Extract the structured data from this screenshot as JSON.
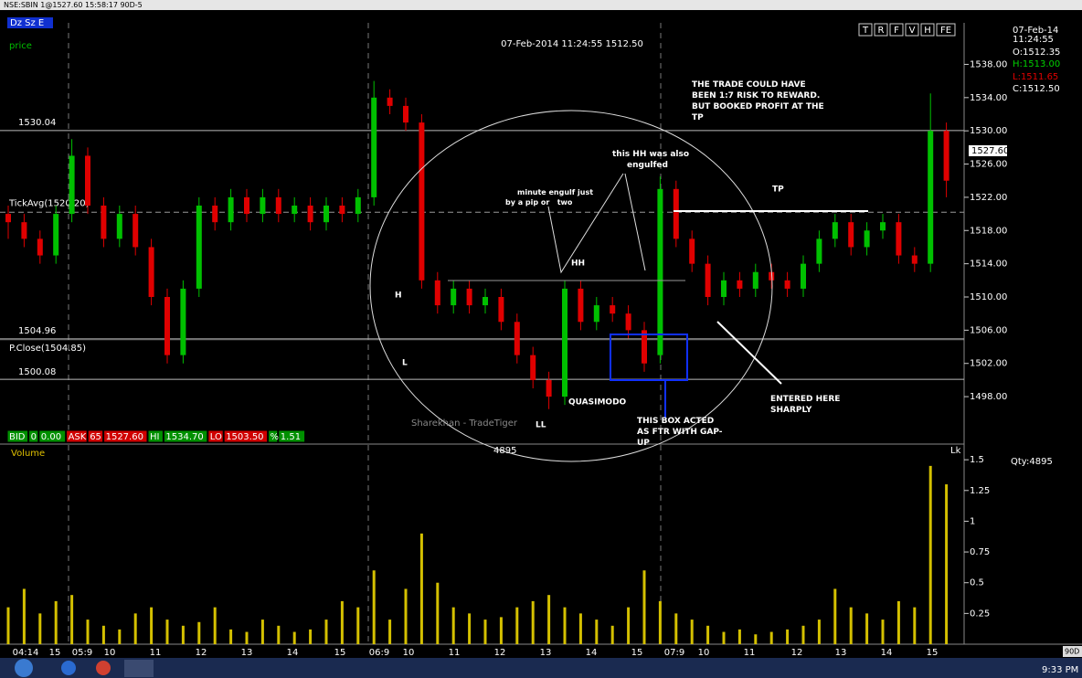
{
  "window_title": "NSE:SBIN 1@1527.60 15:58:17 90D-5",
  "toolbar": {
    "mode": "Dz Sz E",
    "price_label": "price",
    "buttons": [
      "T",
      "R",
      "F",
      "V",
      "H",
      "FE"
    ]
  },
  "header": "07-Feb-2014 11:24:55 1512.50",
  "info": {
    "date": "07-Feb-14",
    "time": "11:24:55",
    "open": "O:1512.35",
    "high": "H:1513.00",
    "low": "L:1511.65",
    "close": "C:1512.50",
    "qty": "Qty:4895"
  },
  "status_bar": [
    "BID",
    "0",
    "0.00",
    "ASK",
    "65",
    "1527.60",
    "HI",
    "1534.70",
    "LO",
    "1503.50",
    "%",
    "1.51"
  ],
  "volume_center": "4895",
  "lk": "Lk",
  "watermark": "Sharekhan - TradeTiger",
  "annotations": {
    "trade": [
      "THE TRADE COULD HAVE",
      "BEEN 1:7 RISK TO REWARD.",
      "BUT BOOKED PROFIT AT THE",
      "TP"
    ],
    "hh_engulfed": [
      "this HH was also",
      "engulfed"
    ],
    "minute": [
      "minute engulf just",
      "by a pip or   two"
    ],
    "hh": "HH",
    "h": "H",
    "l": "L",
    "ll": "LL",
    "quasimodo": "QUASIMODO",
    "tp": "TP",
    "box": [
      "THIS BOX ACTED",
      "AS FTR WITH GAP-",
      "UP"
    ],
    "entered": [
      "ENTERED HERE",
      "SHARPLY"
    ]
  },
  "time_axis": [
    "04:14",
    "15",
    "05:9",
    "10",
    "11",
    "12",
    "13",
    "14",
    "15",
    "06:9",
    "10",
    "11",
    "12",
    "13",
    "14",
    "15",
    "07:9",
    "10",
    "11",
    "12",
    "13",
    "14",
    "15"
  ],
  "taskbar": {
    "clock": "9:33 PM",
    "tab": "90D"
  },
  "chart_data": [
    {
      "type": "candlestick",
      "up_color": "#00c000",
      "down_color": "#e00000",
      "open": [
        1520,
        1519,
        1517,
        1515,
        1520,
        1527,
        1521,
        1517,
        1520,
        1516,
        1510,
        1503,
        1511,
        1521,
        1519,
        1522,
        1520,
        1522,
        1520,
        1521,
        1519,
        1521,
        1520,
        1522,
        1534,
        1533,
        1531,
        1512,
        1509,
        1511,
        1509,
        1510,
        1507,
        1503,
        1500,
        1498,
        1511,
        1507,
        1509,
        1508,
        1506,
        1503,
        1523,
        1517,
        1514,
        1510,
        1512,
        1511,
        1513,
        1512,
        1511,
        1514,
        1517,
        1519,
        1516,
        1518,
        1519,
        1515,
        1514,
        1530
      ],
      "high": [
        1521,
        1520,
        1518,
        1521,
        1529,
        1528,
        1522,
        1521,
        1521,
        1517,
        1511,
        1512,
        1522,
        1522,
        1523,
        1523,
        1523,
        1523,
        1522,
        1522,
        1522,
        1522,
        1523,
        1536,
        1535,
        1534,
        1532,
        1513,
        1512,
        1512,
        1511,
        1511,
        1508,
        1504,
        1501,
        1512,
        1512,
        1510,
        1510,
        1509,
        1507,
        1524.5,
        1524,
        1518,
        1515,
        1513,
        1513,
        1514,
        1514,
        1513,
        1515,
        1518,
        1520,
        1520,
        1519,
        1520,
        1520,
        1516,
        1534.5,
        1531
      ],
      "low": [
        1517,
        1516,
        1514,
        1514,
        1519,
        1520,
        1516,
        1516,
        1515,
        1509,
        1502,
        1502,
        1510,
        1518,
        1518,
        1519,
        1519,
        1519,
        1519,
        1518,
        1518,
        1519,
        1519,
        1521,
        1532,
        1530,
        1511,
        1508,
        1508,
        1508,
        1508,
        1506,
        1502,
        1499,
        1496.5,
        1497,
        1506,
        1506,
        1507,
        1505,
        1501,
        1502,
        1516,
        1513,
        1509,
        1509,
        1510,
        1510,
        1511,
        1510,
        1510,
        1513,
        1516,
        1515,
        1515,
        1517,
        1514,
        1513,
        1513,
        1522
      ],
      "close": [
        1519,
        1517,
        1515,
        1520,
        1527,
        1521,
        1517,
        1520,
        1516,
        1510,
        1503,
        1511,
        1521,
        1519,
        1522,
        1520,
        1522,
        1520,
        1521,
        1519,
        1521,
        1520,
        1522,
        1534,
        1533,
        1531,
        1512,
        1509,
        1511,
        1509,
        1510,
        1507,
        1503,
        1500,
        1498,
        1511,
        1507,
        1509,
        1508,
        1506,
        1502,
        1523,
        1517,
        1514,
        1510,
        1512,
        1511,
        1513,
        1512,
        1511,
        1514,
        1517,
        1519,
        1516,
        1518,
        1519,
        1515,
        1514,
        1530,
        1524
      ],
      "ylim": [
        1492.4,
        1543
      ],
      "yticks": [
        {
          "value": 1538,
          "label": "1538.00"
        },
        {
          "value": 1534,
          "label": "1534.00"
        },
        {
          "value": 1530,
          "label": "1530.00"
        },
        {
          "value": 1526,
          "label": "1526.00"
        },
        {
          "value": 1522,
          "label": "1522.00"
        },
        {
          "value": 1518,
          "label": "1518.00"
        },
        {
          "value": 1514,
          "label": "1514.00"
        },
        {
          "value": 1510,
          "label": "1510.00"
        },
        {
          "value": 1506,
          "label": "1506.00"
        },
        {
          "value": 1502,
          "label": "1502.00"
        },
        {
          "value": 1498,
          "label": "1498.00"
        }
      ],
      "levels": [
        {
          "value": 1530.04,
          "label": "1530.04"
        },
        {
          "value": 1520.2,
          "label": "TickAvg(1520.20)"
        },
        {
          "value": 1504.96,
          "label": "1504.96"
        },
        {
          "value": 1504.85,
          "label": "P.Close(1504.85)"
        },
        {
          "value": 1500.08,
          "label": "1500.08"
        }
      ],
      "last_price": {
        "value": 1527.6,
        "label": "1527.60"
      }
    },
    {
      "type": "bar",
      "title": "Volume",
      "color": "#d4c000",
      "values": [
        0.3,
        0.45,
        0.25,
        0.35,
        0.4,
        0.2,
        0.15,
        0.12,
        0.25,
        0.3,
        0.2,
        0.15,
        0.18,
        0.3,
        0.12,
        0.1,
        0.2,
        0.15,
        0.1,
        0.12,
        0.2,
        0.35,
        0.3,
        0.6,
        0.2,
        0.45,
        0.9,
        0.5,
        0.3,
        0.25,
        0.2,
        0.22,
        0.3,
        0.35,
        0.4,
        0.3,
        0.25,
        0.2,
        0.15,
        0.3,
        0.6,
        0.35,
        0.25,
        0.2,
        0.15,
        0.1,
        0.12,
        0.08,
        0.1,
        0.12,
        0.15,
        0.2,
        0.45,
        0.3,
        0.25,
        0.2,
        0.35,
        0.3,
        1.45,
        1.3
      ],
      "ylim": [
        0,
        1.62
      ],
      "yticks": [
        1.5,
        1.25,
        1,
        0.75,
        0.5,
        0.25
      ]
    }
  ]
}
